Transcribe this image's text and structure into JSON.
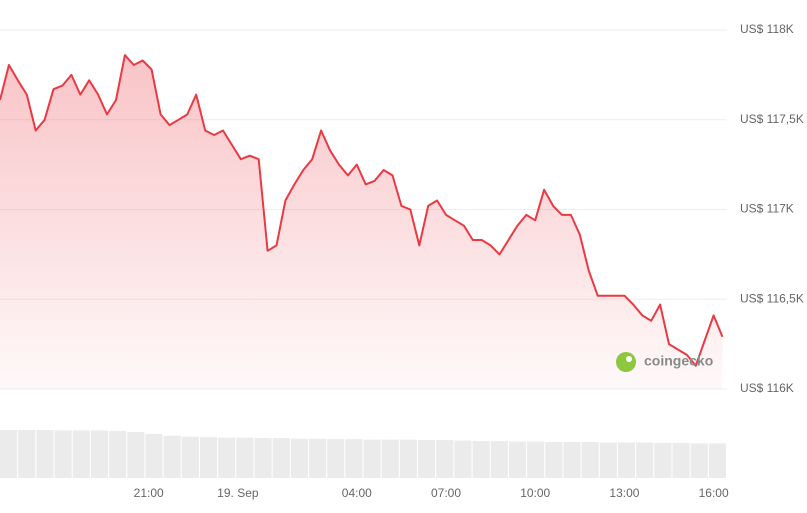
{
  "watermark": "coingecko",
  "chart_data": {
    "type": "line",
    "color": "#ea3943",
    "grid": true,
    "x": [
      0,
      0.3,
      0.6,
      0.9,
      1.2,
      1.5,
      1.8,
      2.1,
      2.4,
      2.7,
      3,
      3.3,
      3.6,
      3.9,
      4.2,
      4.5,
      4.8,
      5.1,
      5.4,
      5.7,
      6,
      6.3,
      6.6,
      6.9,
      7.2,
      7.5,
      7.8,
      8.1,
      8.4,
      8.7,
      9,
      9.3,
      9.6,
      9.9,
      10.2,
      10.5,
      10.8,
      11.1,
      11.4,
      11.7,
      12,
      12.3,
      12.6,
      12.9,
      13.2,
      13.5,
      13.8,
      14.1,
      14.4,
      14.7,
      15,
      15.3,
      15.6,
      15.9,
      16.2,
      16.5,
      16.8,
      17.1,
      17.4,
      17.7,
      18,
      18.3,
      18.6,
      18.9,
      19.2,
      19.5,
      19.8,
      20.1,
      20.4,
      20.7,
      21,
      21.3,
      21.6,
      21.9,
      22.2,
      22.5,
      22.8,
      23.1,
      23.4,
      23.7,
      24,
      24.3
    ],
    "values": [
      117610,
      117805,
      117720,
      117640,
      117440,
      117500,
      117670,
      117690,
      117750,
      117640,
      117720,
      117640,
      117530,
      117610,
      117860,
      117805,
      117830,
      117780,
      117530,
      117470,
      117500,
      117530,
      117640,
      117440,
      117415,
      117440,
      117360,
      117280,
      117300,
      117280,
      116770,
      116800,
      117050,
      117140,
      117220,
      117280,
      117440,
      117330,
      117250,
      117190,
      117250,
      117140,
      117160,
      117220,
      117190,
      117020,
      117000,
      116800,
      117020,
      117050,
      116970,
      116940,
      116910,
      116830,
      116830,
      116800,
      116750,
      116830,
      116910,
      116970,
      116940,
      117110,
      117020,
      116970,
      116970,
      116860,
      116660,
      116520,
      116520,
      116520,
      116520,
      116470,
      116410,
      116380,
      116470,
      116250,
      116220,
      116190,
      116130,
      116270,
      116410,
      116290
    ],
    "xlim": [
      0,
      24.45
    ],
    "xticks": [
      {
        "value": 5,
        "label": "21:00"
      },
      {
        "value": 8,
        "label": "19. Sep"
      },
      {
        "value": 12,
        "label": "04:00"
      },
      {
        "value": 15,
        "label": "07:00"
      },
      {
        "value": 18,
        "label": "10:00"
      },
      {
        "value": 21,
        "label": "13:00"
      },
      {
        "value": 24,
        "label": "16:00"
      }
    ],
    "ylim": [
      116000,
      118000
    ],
    "yticks": [
      {
        "value": 118000,
        "label": "US$ 118K"
      },
      {
        "value": 117500,
        "label": "US$ 117,5K"
      },
      {
        "value": 117000,
        "label": "US$ 117K"
      },
      {
        "value": 116500,
        "label": "US$ 116,5K"
      },
      {
        "value": 116000,
        "label": "US$ 116K"
      }
    ],
    "volume": {
      "color": "#ebebeb",
      "values": [
        100,
        100,
        100,
        99,
        99,
        99,
        98,
        96,
        92,
        88,
        86,
        85,
        84,
        84,
        83,
        83,
        82,
        82,
        81,
        81,
        80,
        80,
        80,
        79,
        79,
        78,
        77,
        77,
        76,
        76,
        75,
        75,
        75,
        74,
        74,
        74,
        73,
        73,
        72,
        72
      ],
      "y2lim": [
        0,
        100
      ]
    }
  }
}
